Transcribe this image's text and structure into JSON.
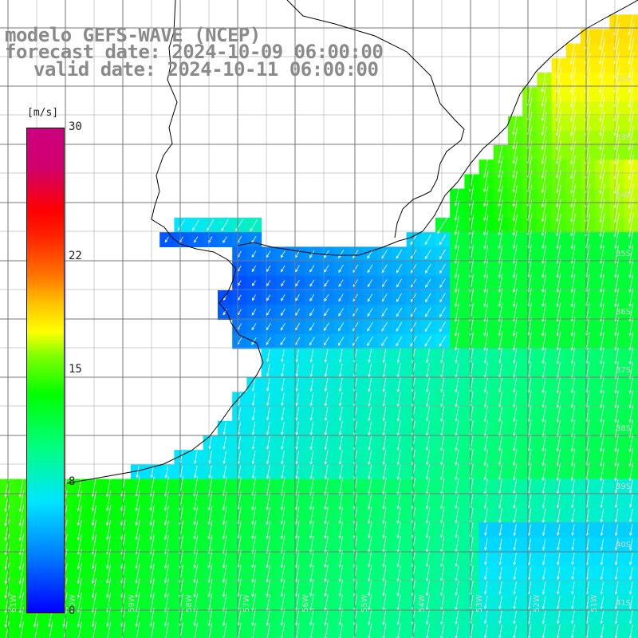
{
  "title": {
    "line1": "modelo GEFS-WAVE (NCEP)",
    "line2": "forecast date: 2024-10-09 06:00:00",
    "line3": "valid date: 2024-10-11 06:00:00"
  },
  "colorbar": {
    "unit": "[m/s]",
    "ticks": [
      "30",
      "22",
      "15",
      "8",
      "0"
    ],
    "tick_values": [
      30,
      22,
      15,
      8,
      0
    ]
  },
  "map": {
    "lon_range": [
      -61.5,
      -50.5
    ],
    "lat_range": [
      -41.3,
      -30.4
    ],
    "lat_labels": [
      "32S",
      "33S",
      "34S",
      "35S",
      "36S",
      "37S",
      "38S",
      "39S",
      "40S",
      "41S"
    ],
    "lon_labels": [
      "61W",
      "60W",
      "59W",
      "58W",
      "57W",
      "56W",
      "55W",
      "54W",
      "53W",
      "52W",
      "51W"
    ],
    "field": "wind speed",
    "arrow_direction": "toward south / southwest",
    "colors": {
      "land": "#ffffff",
      "coast": "#000000",
      "grid": "#888888",
      "title_text": "#8a8a8a"
    }
  }
}
